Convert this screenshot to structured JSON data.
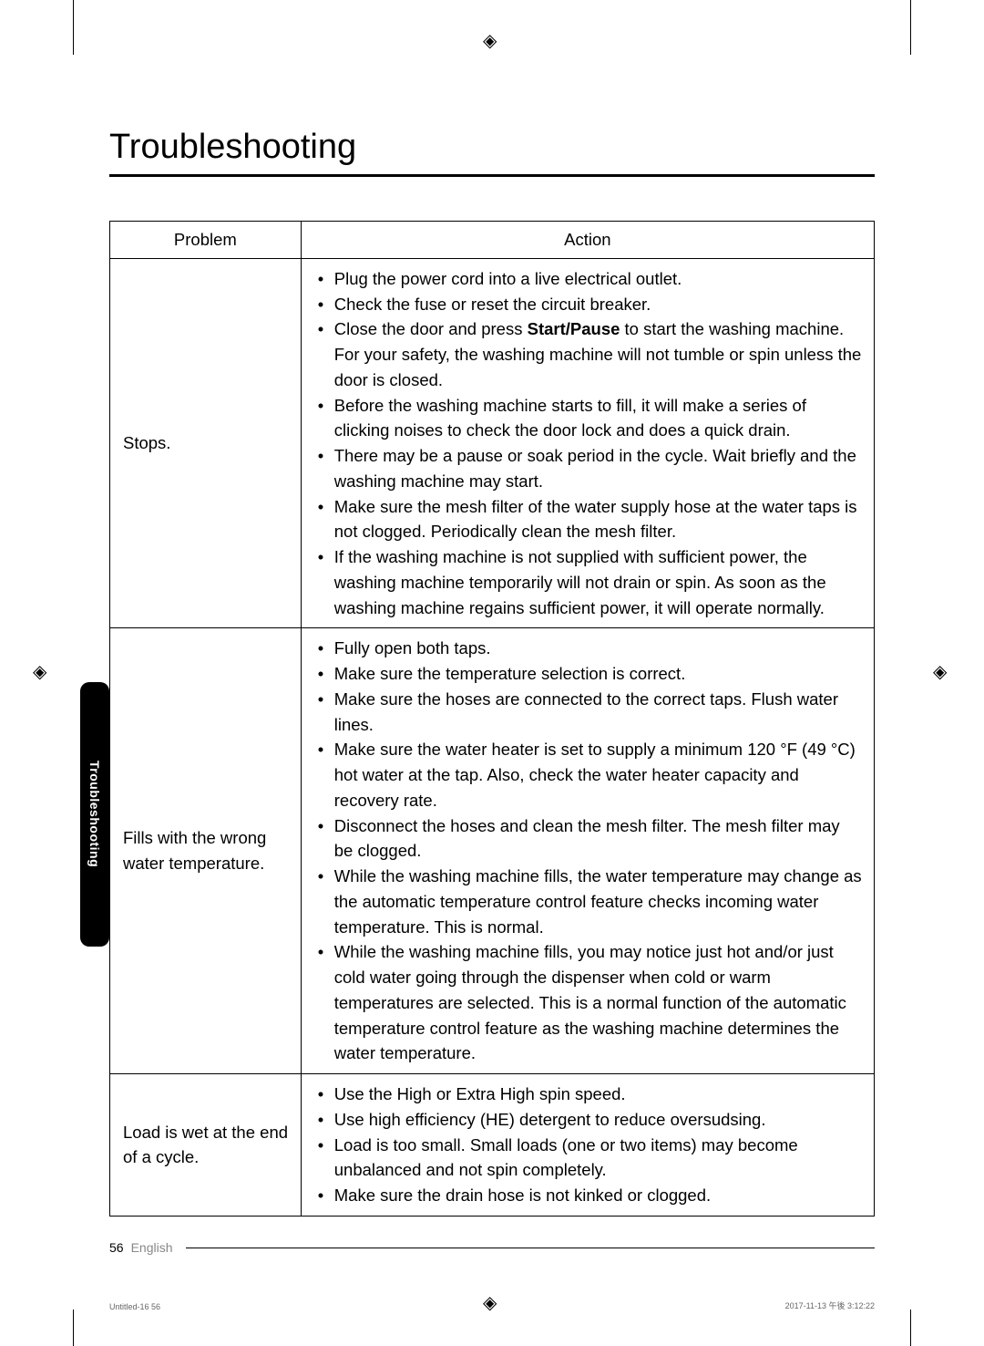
{
  "page": {
    "title": "Troubleshooting",
    "side_tab": "Troubleshooting",
    "page_number": "56",
    "language": "English",
    "print_meta_left": "Untitled-16   56",
    "print_meta_right": "2017-11-13   午後 3:12:22"
  },
  "table": {
    "headers": {
      "problem": "Problem",
      "action": "Action"
    },
    "rows": [
      {
        "problem": "Stops.",
        "actions": [
          {
            "pre": "Plug the power cord into a live electrical outlet."
          },
          {
            "pre": "Check the fuse or reset the circuit breaker."
          },
          {
            "pre": "Close the door and press ",
            "bold": "Start/Pause",
            "post": " to start the washing machine. For your safety, the washing machine will not tumble or spin unless the door is closed."
          },
          {
            "pre": "Before the washing machine starts to fill, it will make a series of clicking noises to check the door lock and does a quick drain."
          },
          {
            "pre": "There may be a pause or soak period in the cycle. Wait briefly and the washing machine may start."
          },
          {
            "pre": "Make sure the mesh filter of the water supply hose at the water taps is not clogged. Periodically clean the mesh filter."
          },
          {
            "pre": "If the washing machine is not supplied with sufficient power, the washing machine temporarily will not drain or spin. As soon as the washing machine regains sufficient power, it will operate normally."
          }
        ]
      },
      {
        "problem": "Fills with the wrong water temperature.",
        "actions": [
          {
            "pre": "Fully open both taps."
          },
          {
            "pre": "Make sure the temperature selection is correct."
          },
          {
            "pre": "Make sure the hoses are connected to the correct taps. Flush water lines."
          },
          {
            "pre": "Make sure the water heater is set to supply a minimum 120 °F (49 °C) hot water at the tap. Also, check the water heater capacity and recovery rate."
          },
          {
            "pre": "Disconnect the hoses and clean the mesh filter. The mesh filter may be clogged."
          },
          {
            "pre": "While the washing machine fills, the water temperature may change as the automatic temperature control feature checks incoming water temperature. This is normal."
          },
          {
            "pre": "While the washing machine fills, you may notice just hot and/or just cold water going through the dispenser when cold or warm temperatures are selected. This is a normal function of the automatic temperature control feature as the washing machine determines the water temperature."
          }
        ]
      },
      {
        "problem": "Load is wet at the end of a cycle.",
        "actions": [
          {
            "pre": "Use the High or Extra High spin speed."
          },
          {
            "pre": "Use high efficiency (HE) detergent to reduce oversudsing."
          },
          {
            "pre": "Load is too small. Small loads (one or two items) may become unbalanced and not spin completely."
          },
          {
            "pre": "Make sure the drain hose is not kinked or clogged."
          }
        ]
      }
    ]
  },
  "styling": {
    "background_color": "#ffffff",
    "text_color": "#000000",
    "border_color": "#000000",
    "tab_bg": "#000000",
    "tab_text": "#ffffff",
    "title_fontsize": 38,
    "body_fontsize": 18.5
  }
}
